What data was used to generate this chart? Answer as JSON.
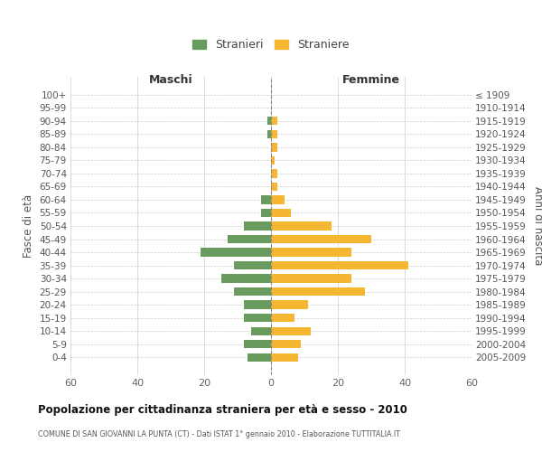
{
  "age_groups": [
    "100+",
    "95-99",
    "90-94",
    "85-89",
    "80-84",
    "75-79",
    "70-74",
    "65-69",
    "60-64",
    "55-59",
    "50-54",
    "45-49",
    "40-44",
    "35-39",
    "30-34",
    "25-29",
    "20-24",
    "15-19",
    "10-14",
    "5-9",
    "0-4"
  ],
  "birth_years": [
    "≤ 1909",
    "1910-1914",
    "1915-1919",
    "1920-1924",
    "1925-1929",
    "1930-1934",
    "1935-1939",
    "1940-1944",
    "1945-1949",
    "1950-1954",
    "1955-1959",
    "1960-1964",
    "1965-1969",
    "1970-1974",
    "1975-1979",
    "1980-1984",
    "1985-1989",
    "1990-1994",
    "1995-1999",
    "2000-2004",
    "2005-2009"
  ],
  "maschi": [
    0,
    0,
    1,
    1,
    0,
    0,
    0,
    0,
    3,
    3,
    8,
    13,
    21,
    11,
    15,
    11,
    8,
    8,
    6,
    8,
    7
  ],
  "femmine": [
    0,
    0,
    2,
    2,
    2,
    1,
    2,
    2,
    4,
    6,
    18,
    30,
    24,
    41,
    24,
    28,
    11,
    7,
    12,
    9,
    8
  ],
  "color_maschi": "#6a9b5e",
  "color_femmine": "#f5b731",
  "color_center_line": "#888888",
  "title": "Popolazione per cittadinanza straniera per età e sesso - 2010",
  "subtitle": "COMUNE DI SAN GIOVANNI LA PUNTA (CT) - Dati ISTAT 1° gennaio 2010 - Elaborazione TUTTITALIA.IT",
  "ylabel_left": "Fasce di età",
  "ylabel_right": "Anni di nascita",
  "header_left": "Maschi",
  "header_right": "Femmine",
  "legend_maschi": "Stranieri",
  "legend_femmine": "Straniere",
  "xlim": 60,
  "background_color": "#ffffff",
  "grid_color": "#cccccc"
}
